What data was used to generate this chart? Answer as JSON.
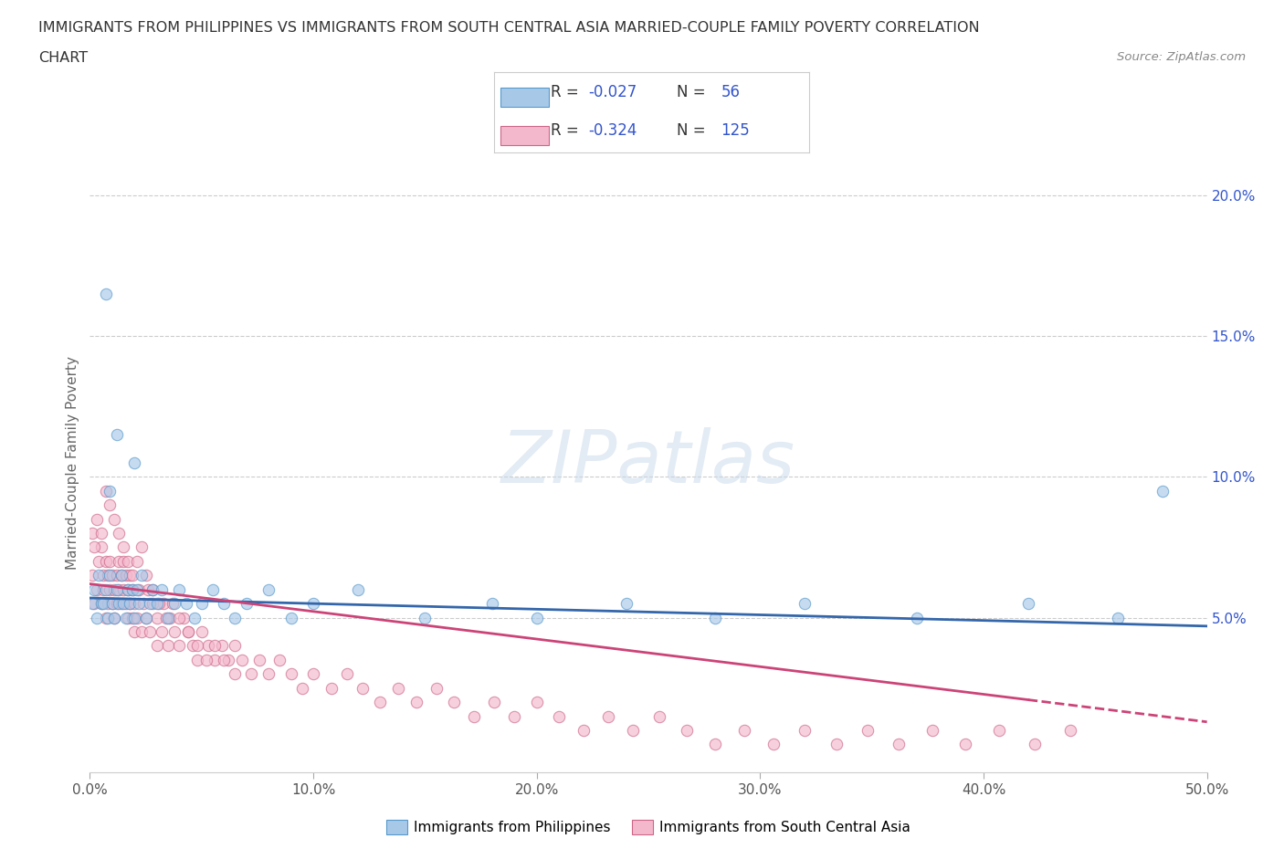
{
  "title_line1": "IMMIGRANTS FROM PHILIPPINES VS IMMIGRANTS FROM SOUTH CENTRAL ASIA MARRIED-COUPLE FAMILY POVERTY CORRELATION",
  "title_line2": "CHART",
  "source": "Source: ZipAtlas.com",
  "ylabel": "Married-Couple Family Poverty",
  "watermark": "ZIPatlas",
  "xlim": [
    0.0,
    0.5
  ],
  "ylim": [
    -0.005,
    0.215
  ],
  "xticklabels": [
    "0.0%",
    "10.0%",
    "20.0%",
    "30.0%",
    "40.0%",
    "50.0%"
  ],
  "right_yticklabels": [
    "5.0%",
    "10.0%",
    "15.0%",
    "20.0%"
  ],
  "right_ytick_vals": [
    0.05,
    0.1,
    0.15,
    0.2
  ],
  "color_blue": "#a8c8e8",
  "color_pink": "#f4b8cc",
  "color_blue_edge": "#5599cc",
  "color_pink_edge": "#cc6688",
  "color_blue_line": "#3366aa",
  "color_pink_line": "#cc4477",
  "color_title": "#333333",
  "color_stats": "#3355cc",
  "color_R": "#3355cc",
  "color_N": "#3355cc",
  "background_color": "#ffffff",
  "grid_color": "#cccccc",
  "blue_line_intercept": 0.057,
  "blue_line_slope": -0.02,
  "pink_line_intercept": 0.062,
  "pink_line_slope": -0.098,
  "philippines_x": [
    0.001,
    0.002,
    0.003,
    0.004,
    0.005,
    0.006,
    0.007,
    0.008,
    0.009,
    0.01,
    0.011,
    0.012,
    0.013,
    0.014,
    0.015,
    0.016,
    0.017,
    0.018,
    0.019,
    0.02,
    0.021,
    0.022,
    0.023,
    0.025,
    0.027,
    0.028,
    0.03,
    0.032,
    0.035,
    0.038,
    0.04,
    0.043,
    0.047,
    0.05,
    0.055,
    0.06,
    0.065,
    0.07,
    0.08,
    0.09,
    0.1,
    0.12,
    0.15,
    0.18,
    0.2,
    0.24,
    0.28,
    0.32,
    0.37,
    0.42,
    0.46,
    0.48,
    0.007,
    0.009,
    0.012,
    0.02
  ],
  "philippines_y": [
    0.055,
    0.06,
    0.05,
    0.065,
    0.055,
    0.055,
    0.06,
    0.05,
    0.065,
    0.055,
    0.05,
    0.06,
    0.055,
    0.065,
    0.055,
    0.05,
    0.06,
    0.055,
    0.06,
    0.05,
    0.06,
    0.055,
    0.065,
    0.05,
    0.055,
    0.06,
    0.055,
    0.06,
    0.05,
    0.055,
    0.06,
    0.055,
    0.05,
    0.055,
    0.06,
    0.055,
    0.05,
    0.055,
    0.06,
    0.05,
    0.055,
    0.06,
    0.05,
    0.055,
    0.05,
    0.055,
    0.05,
    0.055,
    0.05,
    0.055,
    0.05,
    0.095,
    0.165,
    0.095,
    0.115,
    0.105
  ],
  "south_central_asia_x": [
    0.001,
    0.002,
    0.003,
    0.004,
    0.005,
    0.005,
    0.006,
    0.006,
    0.007,
    0.007,
    0.008,
    0.008,
    0.009,
    0.009,
    0.01,
    0.01,
    0.011,
    0.011,
    0.012,
    0.012,
    0.013,
    0.013,
    0.014,
    0.014,
    0.015,
    0.015,
    0.016,
    0.016,
    0.017,
    0.017,
    0.018,
    0.018,
    0.019,
    0.019,
    0.02,
    0.02,
    0.021,
    0.022,
    0.023,
    0.024,
    0.025,
    0.026,
    0.027,
    0.028,
    0.03,
    0.03,
    0.032,
    0.033,
    0.035,
    0.036,
    0.038,
    0.04,
    0.042,
    0.044,
    0.046,
    0.048,
    0.05,
    0.053,
    0.056,
    0.059,
    0.062,
    0.065,
    0.068,
    0.072,
    0.076,
    0.08,
    0.085,
    0.09,
    0.095,
    0.1,
    0.108,
    0.115,
    0.122,
    0.13,
    0.138,
    0.146,
    0.155,
    0.163,
    0.172,
    0.181,
    0.19,
    0.2,
    0.21,
    0.221,
    0.232,
    0.243,
    0.255,
    0.267,
    0.28,
    0.293,
    0.306,
    0.32,
    0.334,
    0.348,
    0.362,
    0.377,
    0.392,
    0.407,
    0.423,
    0.439,
    0.001,
    0.002,
    0.003,
    0.005,
    0.007,
    0.009,
    0.011,
    0.013,
    0.015,
    0.017,
    0.019,
    0.021,
    0.023,
    0.025,
    0.028,
    0.031,
    0.034,
    0.037,
    0.04,
    0.044,
    0.048,
    0.052,
    0.056,
    0.06,
    0.065
  ],
  "south_central_asia_y": [
    0.065,
    0.055,
    0.06,
    0.07,
    0.055,
    0.075,
    0.06,
    0.065,
    0.05,
    0.07,
    0.055,
    0.065,
    0.06,
    0.07,
    0.055,
    0.065,
    0.05,
    0.06,
    0.055,
    0.065,
    0.06,
    0.07,
    0.055,
    0.065,
    0.06,
    0.07,
    0.055,
    0.065,
    0.05,
    0.06,
    0.055,
    0.065,
    0.05,
    0.06,
    0.045,
    0.055,
    0.05,
    0.06,
    0.045,
    0.055,
    0.05,
    0.06,
    0.045,
    0.055,
    0.04,
    0.05,
    0.045,
    0.055,
    0.04,
    0.05,
    0.045,
    0.04,
    0.05,
    0.045,
    0.04,
    0.035,
    0.045,
    0.04,
    0.035,
    0.04,
    0.035,
    0.04,
    0.035,
    0.03,
    0.035,
    0.03,
    0.035,
    0.03,
    0.025,
    0.03,
    0.025,
    0.03,
    0.025,
    0.02,
    0.025,
    0.02,
    0.025,
    0.02,
    0.015,
    0.02,
    0.015,
    0.02,
    0.015,
    0.01,
    0.015,
    0.01,
    0.015,
    0.01,
    0.005,
    0.01,
    0.005,
    0.01,
    0.005,
    0.01,
    0.005,
    0.01,
    0.005,
    0.01,
    0.005,
    0.01,
    0.08,
    0.075,
    0.085,
    0.08,
    0.095,
    0.09,
    0.085,
    0.08,
    0.075,
    0.07,
    0.065,
    0.07,
    0.075,
    0.065,
    0.06,
    0.055,
    0.05,
    0.055,
    0.05,
    0.045,
    0.04,
    0.035,
    0.04,
    0.035,
    0.03
  ]
}
